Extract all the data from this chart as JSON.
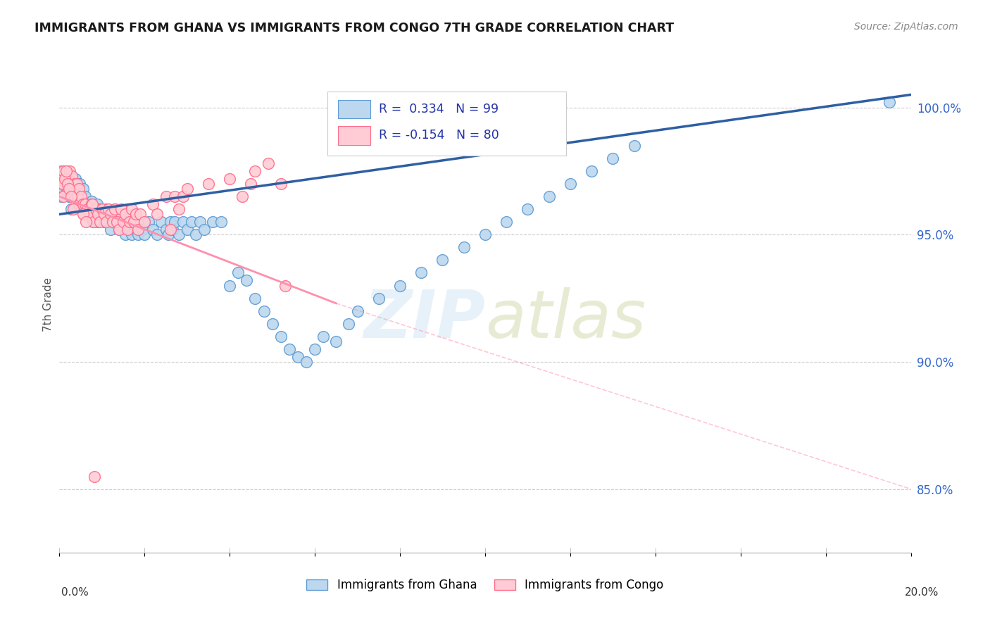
{
  "title": "IMMIGRANTS FROM GHANA VS IMMIGRANTS FROM CONGO 7TH GRADE CORRELATION CHART",
  "source": "Source: ZipAtlas.com",
  "ylabel": "7th Grade",
  "x_range": [
    0.0,
    20.0
  ],
  "y_range": [
    82.5,
    102.0
  ],
  "y_ticks": [
    85.0,
    90.0,
    95.0,
    100.0
  ],
  "ghana_R": 0.334,
  "ghana_N": 99,
  "congo_R": -0.154,
  "congo_N": 80,
  "ghana_color_fill": "#BDD7EE",
  "ghana_color_edge": "#5B9BD5",
  "congo_color_fill": "#FFCCD5",
  "congo_color_edge": "#FF6B8A",
  "trend_ghana_color": "#2E5FA3",
  "trend_congo_solid_color": "#FF8FAB",
  "trend_congo_dash_color": "#FFBBCC",
  "legend_box_color": "#CCCCCC",
  "legend_text_color": "#2233AA",
  "watermark_color": "#E8EEF5",
  "ghana_trend_x0": 0.0,
  "ghana_trend_y0": 95.8,
  "ghana_trend_x1": 20.0,
  "ghana_trend_y1": 100.5,
  "congo_solid_x0": 0.0,
  "congo_solid_y0": 96.5,
  "congo_solid_x1": 6.5,
  "congo_solid_y1": 92.3,
  "congo_dash_x1": 20.0,
  "congo_dash_y1": 85.0,
  "ghana_x": [
    0.05,
    0.08,
    0.1,
    0.12,
    0.15,
    0.18,
    0.2,
    0.22,
    0.25,
    0.28,
    0.3,
    0.33,
    0.35,
    0.38,
    0.4,
    0.45,
    0.48,
    0.5,
    0.55,
    0.58,
    0.6,
    0.65,
    0.7,
    0.72,
    0.75,
    0.78,
    0.8,
    0.85,
    0.88,
    0.9,
    0.95,
    1.0,
    1.05,
    1.1,
    1.15,
    1.2,
    1.25,
    1.3,
    1.35,
    1.4,
    1.45,
    1.5,
    1.55,
    1.6,
    1.65,
    1.7,
    1.75,
    1.8,
    1.85,
    1.9,
    1.95,
    2.0,
    2.1,
    2.2,
    2.3,
    2.4,
    2.5,
    2.55,
    2.6,
    2.65,
    2.7,
    2.8,
    2.9,
    3.0,
    3.1,
    3.2,
    3.3,
    3.4,
    3.6,
    3.8,
    4.0,
    4.2,
    4.4,
    4.6,
    4.8,
    5.0,
    5.2,
    5.4,
    5.6,
    5.8,
    6.0,
    6.2,
    6.5,
    6.8,
    7.0,
    7.5,
    8.0,
    8.5,
    9.0,
    9.5,
    10.0,
    10.5,
    11.0,
    11.5,
    12.0,
    12.5,
    13.0,
    13.5,
    19.5
  ],
  "ghana_y": [
    96.5,
    97.0,
    96.8,
    97.2,
    97.5,
    96.8,
    97.0,
    96.5,
    97.2,
    96.0,
    96.8,
    97.0,
    96.5,
    97.2,
    96.8,
    96.2,
    97.0,
    96.5,
    96.8,
    96.0,
    96.5,
    96.2,
    96.0,
    95.8,
    96.3,
    95.5,
    96.0,
    95.8,
    96.2,
    95.5,
    96.0,
    95.8,
    95.5,
    96.0,
    95.8,
    95.2,
    95.5,
    96.0,
    95.5,
    95.2,
    95.8,
    95.5,
    95.0,
    95.5,
    95.2,
    95.0,
    95.5,
    95.2,
    95.0,
    95.5,
    95.2,
    95.0,
    95.5,
    95.2,
    95.0,
    95.5,
    95.2,
    95.0,
    95.5,
    95.2,
    95.5,
    95.0,
    95.5,
    95.2,
    95.5,
    95.0,
    95.5,
    95.2,
    95.5,
    95.5,
    93.0,
    93.5,
    93.2,
    92.5,
    92.0,
    91.5,
    91.0,
    90.5,
    90.2,
    90.0,
    90.5,
    91.0,
    90.8,
    91.5,
    92.0,
    92.5,
    93.0,
    93.5,
    94.0,
    94.5,
    95.0,
    95.5,
    96.0,
    96.5,
    97.0,
    97.5,
    98.0,
    98.5,
    100.2
  ],
  "congo_x": [
    0.02,
    0.04,
    0.06,
    0.08,
    0.1,
    0.12,
    0.15,
    0.18,
    0.2,
    0.22,
    0.25,
    0.28,
    0.3,
    0.33,
    0.35,
    0.38,
    0.4,
    0.42,
    0.45,
    0.48,
    0.5,
    0.52,
    0.55,
    0.58,
    0.6,
    0.65,
    0.7,
    0.75,
    0.8,
    0.85,
    0.9,
    0.95,
    1.0,
    1.05,
    1.1,
    1.15,
    1.2,
    1.25,
    1.3,
    1.35,
    1.4,
    1.45,
    1.5,
    1.55,
    1.6,
    1.65,
    1.7,
    1.75,
    1.8,
    1.85,
    1.9,
    2.0,
    2.2,
    2.3,
    2.5,
    2.6,
    2.7,
    2.8,
    2.9,
    3.0,
    3.5,
    4.0,
    4.3,
    4.5,
    4.6,
    4.9,
    5.2,
    5.3,
    0.07,
    0.09,
    0.13,
    0.16,
    0.19,
    0.23,
    0.27,
    0.32,
    0.55,
    0.62,
    0.77,
    0.82
  ],
  "congo_y": [
    97.2,
    97.5,
    97.0,
    97.3,
    97.5,
    97.0,
    97.2,
    97.0,
    96.8,
    97.2,
    97.5,
    97.0,
    97.3,
    96.8,
    97.0,
    96.5,
    97.0,
    96.5,
    96.8,
    96.2,
    96.5,
    96.0,
    96.2,
    95.8,
    96.2,
    96.0,
    95.8,
    96.2,
    95.5,
    96.0,
    95.8,
    95.5,
    96.0,
    95.8,
    95.5,
    96.0,
    95.8,
    95.5,
    96.0,
    95.5,
    95.2,
    96.0,
    95.5,
    95.8,
    95.2,
    95.5,
    96.0,
    95.5,
    95.8,
    95.2,
    95.8,
    95.5,
    96.2,
    95.8,
    96.5,
    95.2,
    96.5,
    96.0,
    96.5,
    96.8,
    97.0,
    97.2,
    96.5,
    97.0,
    97.5,
    97.8,
    97.0,
    93.0,
    97.0,
    96.5,
    97.2,
    97.5,
    97.0,
    96.8,
    96.5,
    96.0,
    95.8,
    95.5,
    96.2,
    85.5
  ]
}
